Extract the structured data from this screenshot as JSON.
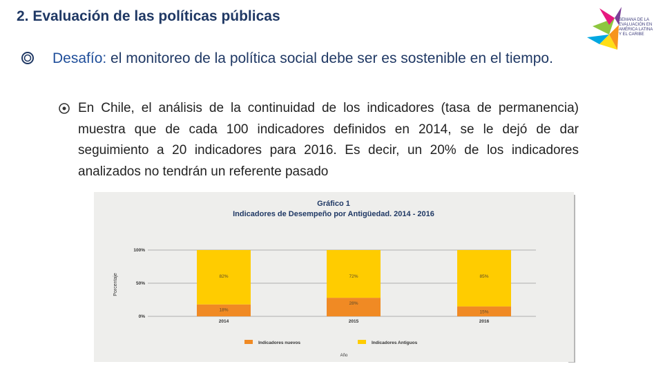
{
  "slide": {
    "title": "2. Evaluación de las políticas públicas"
  },
  "logo": {
    "lines": [
      "SEMANA DE LA",
      "EVALUACIÓN EN",
      "AMÉRICA LATINA",
      "Y EL CARIBE"
    ]
  },
  "bullets": {
    "level1": {
      "strong": "Desafío:",
      "text": " el monitoreo de la política social debe ser es sostenible en el tiempo."
    },
    "level2": {
      "text": "En Chile, el análisis de la continuidad de los indicadores (tasa de permanencia) muestra que de cada 100 indicadores definidos en 2014, se le dejó de dar seguimiento a 20 indicadores para 2016.  Es decir, un 20% de los indicadores analizados no tendrán un referente pasado"
    }
  },
  "colors": {
    "title": "#1f3864",
    "new_indicators": "#f08a24",
    "old_indicators": "#ffcc00",
    "chart_bg": "#eeeeec"
  },
  "chart_data": {
    "type": "bar",
    "stacked": true,
    "title": "Gráfico 1",
    "subtitle": "Indicadores de Desempeño por Antigüedad. 2014 - 2016",
    "xlabel": "Año",
    "ylabel": "Porcentaje",
    "ylim": [
      0,
      100
    ],
    "yticks": [
      0,
      50,
      100
    ],
    "ytick_labels": [
      "0%",
      "50%",
      "100%"
    ],
    "categories": [
      "2014",
      "2015",
      "2016"
    ],
    "series": [
      {
        "name": "Indicadores nuevos",
        "values": [
          18,
          28,
          15
        ],
        "labels": [
          "18%",
          "28%",
          "15%"
        ]
      },
      {
        "name": "Indicadores Antiguos",
        "values": [
          82,
          72,
          85
        ],
        "labels": [
          "82%",
          "72%",
          "85%"
        ]
      }
    ],
    "legend_position": "bottom"
  }
}
